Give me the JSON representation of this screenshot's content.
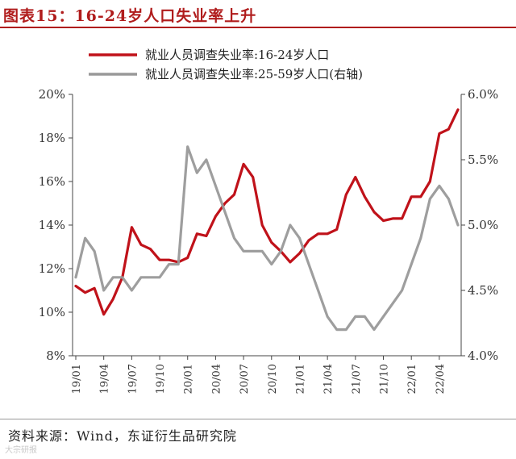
{
  "title": "图表15：16-24岁人口失业率上升",
  "source": "资料来源：Wind，东证衍生品研究院",
  "watermark": "大宗研报",
  "colors": {
    "accent": "#b01c1c",
    "series1": "#c0121a",
    "series2": "#999999",
    "axis": "#444444"
  },
  "chart_data": {
    "type": "line",
    "legend_position": "top",
    "grid": false,
    "x": [
      "19/01",
      "19/02",
      "19/03",
      "19/04",
      "19/05",
      "19/06",
      "19/07",
      "19/08",
      "19/09",
      "19/10",
      "19/11",
      "19/12",
      "20/01",
      "20/02",
      "20/03",
      "20/04",
      "20/05",
      "20/06",
      "20/07",
      "20/08",
      "20/09",
      "20/10",
      "20/11",
      "20/12",
      "21/01",
      "21/02",
      "21/03",
      "21/04",
      "21/05",
      "21/06",
      "21/07",
      "21/08",
      "21/09",
      "21/10",
      "21/11",
      "21/12",
      "22/01",
      "22/02",
      "22/03",
      "22/04",
      "22/05",
      "22/06"
    ],
    "xtick_labels": [
      "19/01",
      "19/04",
      "19/07",
      "19/10",
      "20/01",
      "20/04",
      "20/07",
      "20/10",
      "21/01",
      "21/04",
      "21/07",
      "21/10",
      "22/01",
      "22/04"
    ],
    "left_axis": {
      "ylim": [
        8,
        20
      ],
      "ticks": [
        "8%",
        "10%",
        "12%",
        "14%",
        "16%",
        "18%",
        "20%"
      ]
    },
    "right_axis": {
      "ylim": [
        4.0,
        6.0
      ],
      "ticks": [
        "4.0%",
        "4.5%",
        "5.0%",
        "5.5%",
        "6.0%"
      ]
    },
    "series": [
      {
        "name": "就业人员调查失业率:16-24岁人口",
        "axis": "left",
        "color": "#c0121a",
        "values": [
          11.2,
          10.9,
          11.1,
          9.9,
          10.6,
          11.6,
          13.9,
          13.1,
          12.9,
          12.4,
          12.4,
          12.3,
          12.5,
          13.6,
          13.5,
          14.4,
          15.0,
          15.4,
          16.8,
          16.2,
          14.0,
          13.2,
          12.8,
          12.3,
          12.7,
          13.3,
          13.6,
          13.6,
          13.8,
          15.4,
          16.2,
          15.3,
          14.6,
          14.2,
          14.3,
          14.3,
          15.3,
          15.3,
          16.0,
          18.2,
          18.4,
          19.3
        ]
      },
      {
        "name": "就业人员调查失业率:25-59岁人口(右轴)",
        "axis": "right",
        "color": "#999999",
        "values": [
          4.6,
          4.9,
          4.8,
          4.5,
          4.6,
          4.6,
          4.5,
          4.6,
          4.6,
          4.6,
          4.7,
          4.7,
          5.6,
          5.4,
          5.5,
          5.3,
          5.1,
          4.9,
          4.8,
          4.8,
          4.8,
          4.7,
          4.8,
          5.0,
          4.9,
          4.7,
          4.5,
          4.3,
          4.2,
          4.2,
          4.3,
          4.3,
          4.2,
          4.3,
          4.4,
          4.5,
          4.7,
          4.9,
          5.2,
          5.3,
          5.2,
          5.0
        ]
      }
    ]
  }
}
